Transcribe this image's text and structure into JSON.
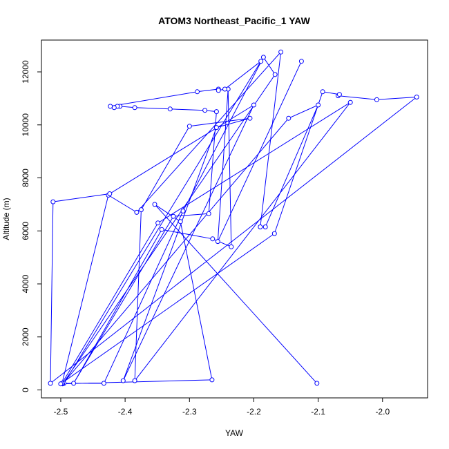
{
  "chart_data": {
    "type": "line",
    "title": "ATOM3 Northeast_Pacific_1 YAW",
    "xlabel": "YAW",
    "ylabel": "Altitude (m)",
    "xlim": [
      -2.53,
      -1.93
    ],
    "ylim": [
      -300,
      13200
    ],
    "xticks": [
      -2.5,
      -2.4,
      -2.3,
      -2.2,
      -2.1,
      -2.0
    ],
    "xtick_labels": [
      "-2.5",
      "-2.4",
      "-2.3",
      "-2.2",
      "-2.1",
      "-2.0"
    ],
    "yticks": [
      0,
      2000,
      4000,
      6000,
      8000,
      10000,
      12000
    ],
    "ytick_labels": [
      "0",
      "2000",
      "4000",
      "6000",
      "8000",
      "10000",
      "12000"
    ],
    "grid": false,
    "line_style": "points-and-lines",
    "color": "#0000ff",
    "series": [
      {
        "x": [
          -2.126,
          -2.256,
          -2.24,
          -2.235,
          -2.264,
          -2.343,
          -2.48,
          -2.325,
          -2.27,
          -2.258,
          -2.276,
          -2.33,
          -2.385,
          -2.408,
          -2.412,
          -2.417,
          -2.423,
          -2.288,
          -2.255,
          -2.255,
          -2.245,
          -2.189,
          -2.495,
          -2.433,
          -2.31,
          -2.185,
          -2.167,
          -2.497,
          -2.146,
          -2.1,
          -2.182,
          -2.19,
          -2.158,
          -2.382,
          -2.426,
          -2.498,
          -2.349,
          -2.05,
          -2.385,
          -2.375,
          -2.3,
          -2.206,
          -2.258,
          -2.403,
          -2.2,
          -2.424,
          -2.512,
          -2.516,
          -1.947,
          -2.009,
          -2.069,
          -2.067,
          -2.093,
          -2.168,
          -2.5,
          -2.265,
          -2.314,
          -2.354,
          -2.102
        ],
        "y": [
          12400,
          5600,
          11350,
          5400,
          5700,
          6050,
          250,
          6550,
          6650,
          10500,
          10550,
          10600,
          10650,
          10700,
          10700,
          10650,
          10700,
          11250,
          11350,
          11300,
          11350,
          12400,
          250,
          250,
          6750,
          12550,
          11900,
          230,
          10250,
          10750,
          6150,
          6150,
          12750,
          6700,
          7350,
          250,
          6300,
          10850,
          350,
          6800,
          9950,
          10250,
          9900,
          350,
          10750,
          7400,
          7100,
          250,
          11050,
          10950,
          11100,
          11150,
          11250,
          5900,
          230,
          380,
          6350,
          7000,
          250
        ]
      }
    ]
  }
}
